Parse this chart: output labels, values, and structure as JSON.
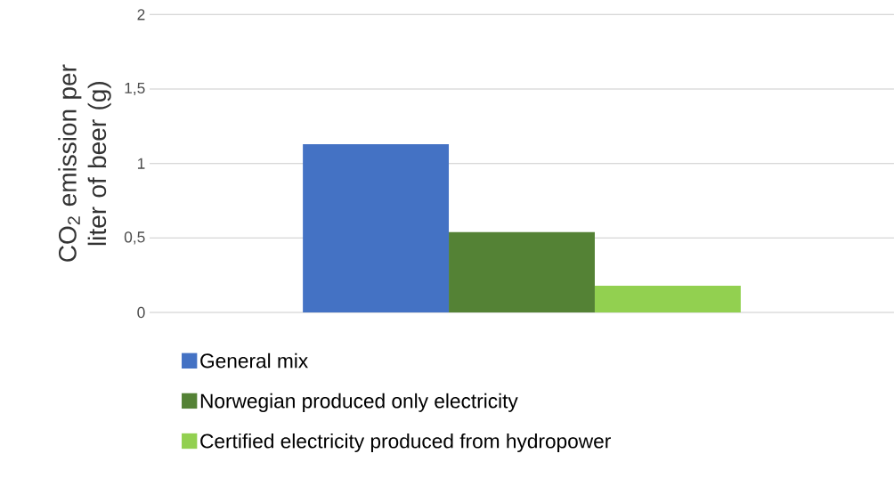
{
  "chart_data": {
    "type": "bar",
    "ylabel": "CO$_{2}$ emission per liter of beer (g)",
    "categories": [
      null
    ],
    "series": [
      {
        "name": "General mix",
        "color": "#4472c4",
        "values": [
          1.13
        ]
      },
      {
        "name": "Norwegian produced only electricity",
        "color": "#548235",
        "values": [
          0.54
        ]
      },
      {
        "name": "Certified electricity produced from hydropower",
        "color": "#92d050",
        "values": [
          0.18
        ]
      }
    ],
    "ylim": [
      0,
      2
    ],
    "yticks": [
      0,
      {
        "value": 0.5,
        "label": "0,5"
      },
      1,
      {
        "value": 1.5,
        "label": "1,5"
      },
      2
    ],
    "grid": "y",
    "legend": "bottom"
  }
}
